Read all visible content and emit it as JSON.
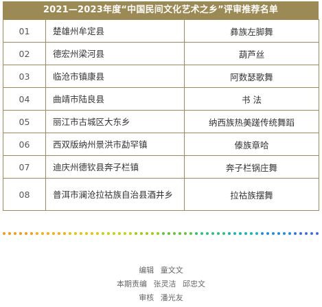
{
  "title": "2021—2023年度“中国民间文化艺术之乡”评审推荐名单",
  "rows": [
    {
      "num": "01",
      "place": "楚雄州牟定县",
      "item": "彝族左脚舞"
    },
    {
      "num": "02",
      "place": "德宏州梁河县",
      "item": "葫芦丝"
    },
    {
      "num": "03",
      "place": "临沧市镇康县",
      "item": "阿数瑟歌舞"
    },
    {
      "num": "04",
      "place": "曲靖市陆良县",
      "item": "书 法"
    },
    {
      "num": "05",
      "place": "丽江市古城区大东乡",
      "item": "纳西族热美蹉传统舞蹈"
    },
    {
      "num": "06",
      "place": "西双版纳州景洪市勐罕镇",
      "item": "傣族章哈"
    },
    {
      "num": "07",
      "place": "迪庆州德钦县奔子栏镇",
      "item": "奔子栏锅庄舞"
    },
    {
      "num": "08",
      "place": "普洱市澜沧拉祜族自治县酒井乡",
      "item": "拉祜族摆舞"
    }
  ],
  "divider_colors": [
    "#f39c12",
    "#f5b000",
    "#e8c400",
    "#cbd200",
    "#9bd000",
    "#5cc83a",
    "#2bbf7a",
    "#18b3c0",
    "#1d8fe0",
    "#3a6fe6"
  ],
  "credits": {
    "editor_label": "编辑",
    "editor": "童文文",
    "duty_label": "本期责编",
    "duty1": "张灵洁",
    "duty2": "邱忠文",
    "review_label": "审核",
    "reviewer": "潘光友"
  }
}
